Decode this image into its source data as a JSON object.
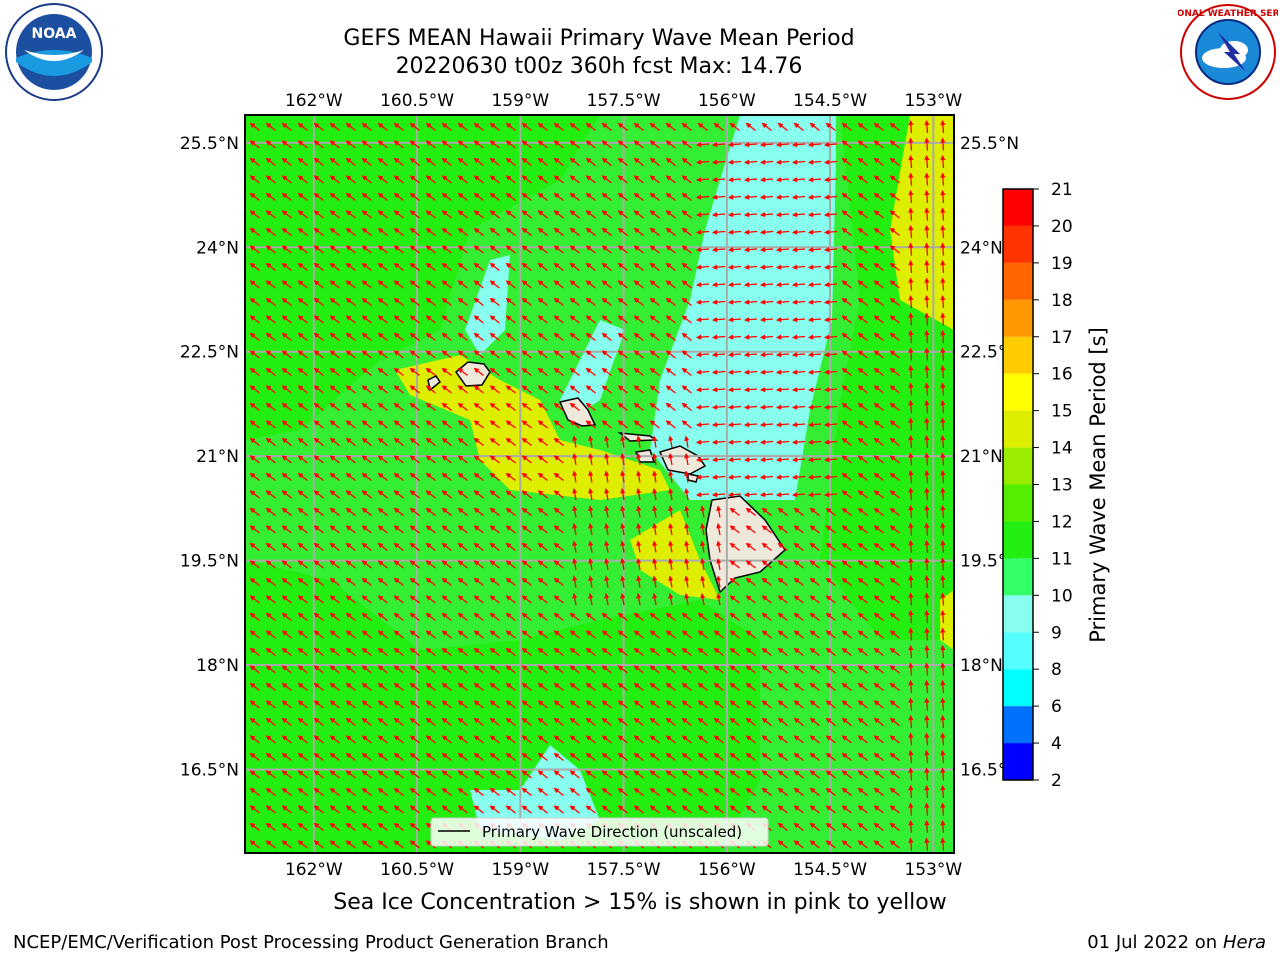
{
  "title": {
    "line1": "GEFS MEAN Hawaii Primary Wave Mean Period",
    "line2": "20220630 t00z 360h fcst   Max: 14.76"
  },
  "logos": {
    "left": "noaa-logo",
    "right": "nws-logo",
    "left_text": "NOAA",
    "right_text": "NATIONAL WEATHER SERVICE"
  },
  "map": {
    "lon_ticks": [
      "162°W",
      "160.5°W",
      "159°W",
      "157.5°W",
      "156°W",
      "154.5°W",
      "153°W"
    ],
    "lat_ticks": [
      "25.5°N",
      "24°N",
      "22.5°N",
      "21°N",
      "19.5°N",
      "18°N",
      "16.5°N"
    ],
    "lon_range": [
      -163.0,
      -152.7
    ],
    "lat_range": [
      15.3,
      25.9
    ],
    "arrow_color": "#ff0000",
    "grid": true,
    "legend_label": "Primary Wave Direction (unscaled)",
    "background_color": "#33ee33"
  },
  "colorbar": {
    "label": "Primary Wave Mean Period [s]",
    "ticks": [
      "2",
      "4",
      "6",
      "8",
      "9",
      "10",
      "11",
      "12",
      "13",
      "14",
      "15",
      "16",
      "17",
      "18",
      "19",
      "20",
      "21"
    ],
    "colors": [
      "#0000ff",
      "#0070ff",
      "#00ffff",
      "#55ffff",
      "#88ffee",
      "#33ff66",
      "#22ee11",
      "#55ee00",
      "#99ee00",
      "#ddee00",
      "#ffff00",
      "#ffcc00",
      "#ff9900",
      "#ff6600",
      "#ff3300",
      "#ff0000"
    ]
  },
  "ice_note": "Sea Ice Concentration > 15% is shown in pink to yellow",
  "footer": {
    "left": "NCEP/EMC/Verification Post Processing Product Generation Branch",
    "right_date": "01 Jul 2022 on ",
    "right_machine": "Hera"
  }
}
